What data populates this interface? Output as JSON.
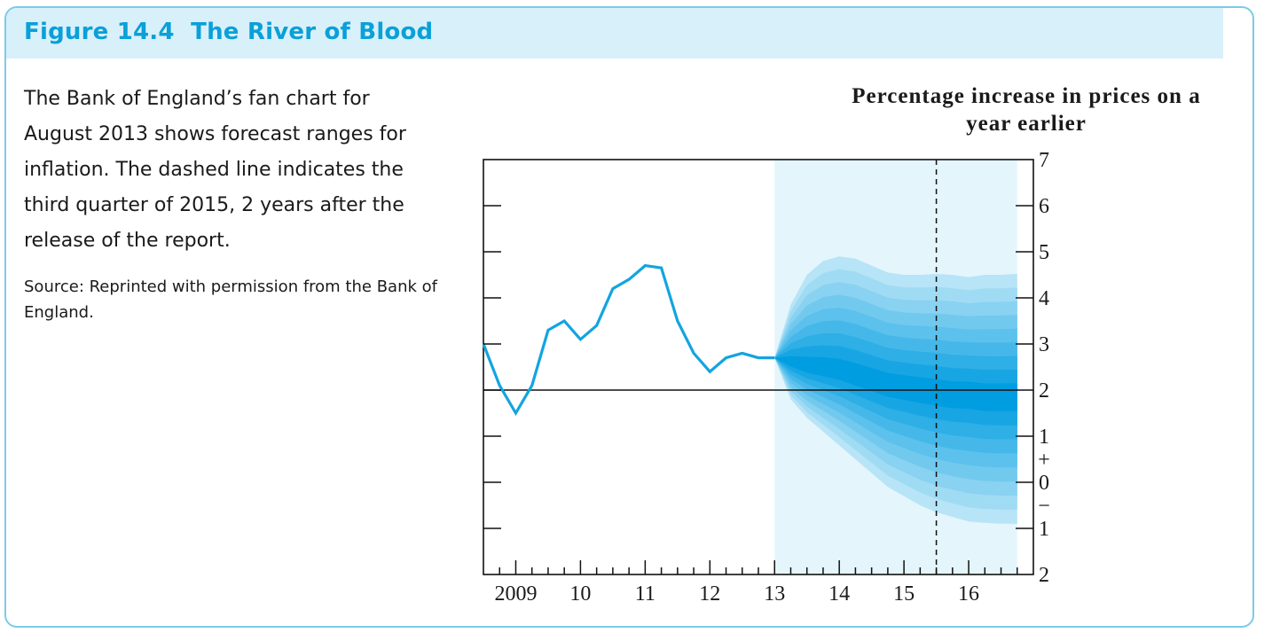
{
  "figure": {
    "title": "Figure 14.4  The River of Blood",
    "caption": "The Bank of England’s fan chart for August 2013 shows forecast ranges for inflation. The dashed line indicates the third quarter of 2015, 2 years after the release of the report.",
    "source": "Source: Reprinted with permission from the Bank of England."
  },
  "colors": {
    "frame": "#7ccbe7",
    "header_bg": "#d8f0fa",
    "title": "#0aa0d8",
    "line": "#13a4e0",
    "forecast_bg": "#e4f5fc",
    "fan_light": "#b7e4f7",
    "fan_dark": "#009de0"
  },
  "chart_data": {
    "type": "line",
    "ylabel": "Percentage increase in prices on a year earlier",
    "ylim": [
      -2,
      7
    ],
    "xlim": [
      2008.5,
      2017.0
    ],
    "x_tick_labels": [
      {
        "x": 2009,
        "label": "2009"
      },
      {
        "x": 2010,
        "label": "10"
      },
      {
        "x": 2011,
        "label": "11"
      },
      {
        "x": 2012,
        "label": "12"
      },
      {
        "x": 2013,
        "label": "13"
      },
      {
        "x": 2014,
        "label": "14"
      },
      {
        "x": 2015,
        "label": "15"
      },
      {
        "x": 2016,
        "label": "16"
      }
    ],
    "y_tick_labels": [
      {
        "y": 7,
        "label": "7"
      },
      {
        "y": 6,
        "label": "6"
      },
      {
        "y": 5,
        "label": "5"
      },
      {
        "y": 4,
        "label": "4"
      },
      {
        "y": 3,
        "label": "3"
      },
      {
        "y": 2,
        "label": "2"
      },
      {
        "y": 1,
        "label": "1"
      },
      {
        "y": 0,
        "label": "0"
      },
      {
        "y": -1,
        "label": "1"
      },
      {
        "y": -2,
        "label": "2"
      }
    ],
    "sign_markers": {
      "plus": "+",
      "minus": "−"
    },
    "target_line": 2,
    "forecast_start": 2013.0,
    "highlight_x": 2015.5,
    "series": [
      {
        "type": "line",
        "x": [
          2008.5,
          2008.75,
          2009.0,
          2009.25,
          2009.5,
          2009.75,
          2010.0,
          2010.25,
          2010.5,
          2010.75,
          2011.0,
          2011.25,
          2011.5,
          2011.75,
          2012.0,
          2012.25,
          2012.5,
          2012.75,
          2013.0
        ],
        "y": [
          3.0,
          2.1,
          1.5,
          2.1,
          3.3,
          3.5,
          3.1,
          3.4,
          4.2,
          4.4,
          4.7,
          4.65,
          3.5,
          2.8,
          2.4,
          2.7,
          2.8,
          2.7,
          2.7
        ]
      }
    ],
    "fan": {
      "x": [
        2013.0,
        2013.25,
        2013.5,
        2013.75,
        2014.0,
        2014.25,
        2014.5,
        2014.75,
        2015.0,
        2015.25,
        2015.5,
        2015.75,
        2016.0,
        2016.25,
        2016.5,
        2016.75,
        2017.0
      ],
      "central": [
        2.7,
        2.6,
        2.5,
        2.45,
        2.4,
        2.3,
        2.2,
        2.1,
        2.05,
        2.0,
        1.95,
        1.9,
        1.9,
        1.85,
        1.85,
        1.85,
        1.85
      ],
      "upper": [
        2.7,
        3.85,
        4.5,
        4.8,
        4.9,
        4.85,
        4.7,
        4.55,
        4.5,
        4.5,
        4.52,
        4.5,
        4.45,
        4.5,
        4.5,
        4.52,
        4.52
      ],
      "lower": [
        2.7,
        1.8,
        1.4,
        1.1,
        0.8,
        0.5,
        0.2,
        -0.1,
        -0.3,
        -0.5,
        -0.65,
        -0.75,
        -0.85,
        -0.88,
        -0.9,
        -0.9,
        -0.9
      ]
    }
  }
}
